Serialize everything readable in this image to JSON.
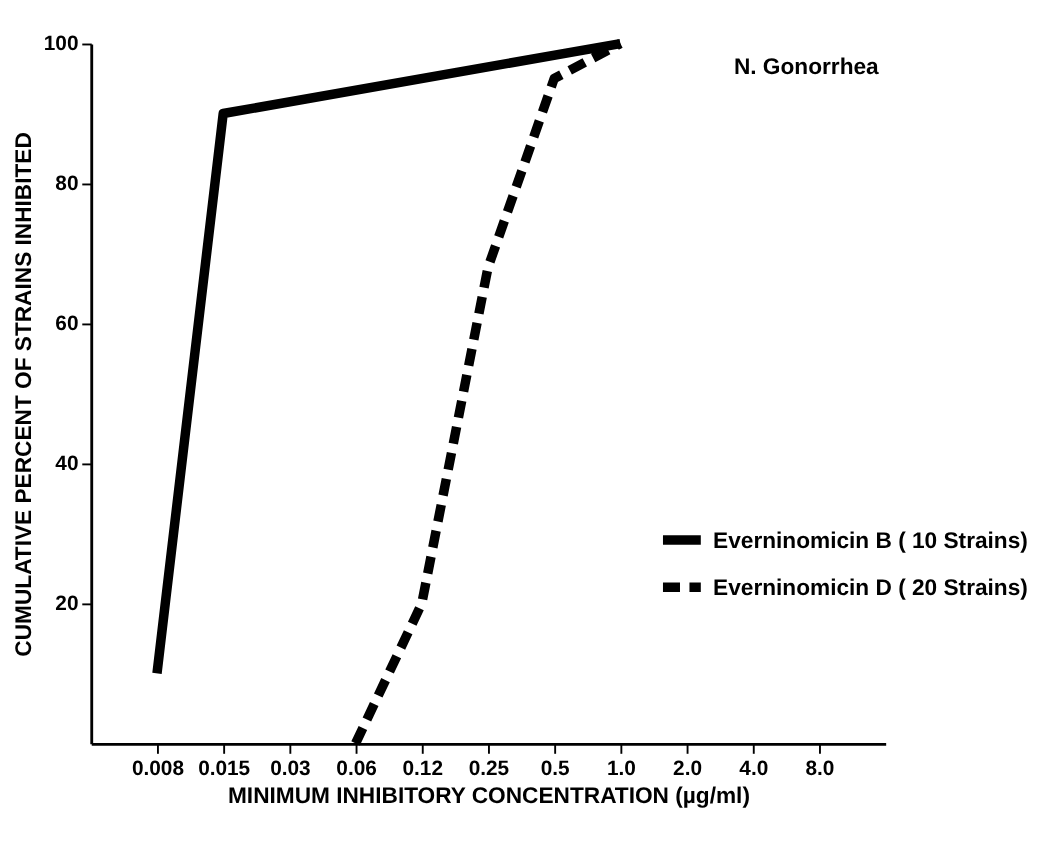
{
  "chart_data": {
    "type": "line",
    "xlabel": "MINIMUM INHIBITORY CONCENTRATION (µg/ml)",
    "ylabel": "CUMULATIVE PERCENT OF STRAINS INHIBITED",
    "categories": [
      "0.008",
      "0.015",
      "0.03",
      "0.06",
      "0.12",
      "0.25",
      "0.5",
      "1.0",
      "2.0",
      "4.0",
      "8.0"
    ],
    "series": [
      {
        "name": "Everninomicin  B ( 10 Strains)",
        "color": "#000000",
        "line_style": "solid",
        "values": [
          10,
          90,
          null,
          null,
          null,
          null,
          null,
          100,
          null,
          null,
          null
        ]
      },
      {
        "name": "Everninomicin  D ( 20 Strains)",
        "color": "#000000",
        "line_style": "dashed",
        "values": [
          null,
          null,
          null,
          0,
          20,
          68,
          95,
          100,
          null,
          null,
          null
        ]
      }
    ],
    "ylim": [
      0,
      100
    ],
    "yticks": [
      20,
      40,
      60,
      80,
      100
    ],
    "grid": false,
    "legend": "right",
    "annotations": [
      "N. Gonorrhea"
    ]
  }
}
